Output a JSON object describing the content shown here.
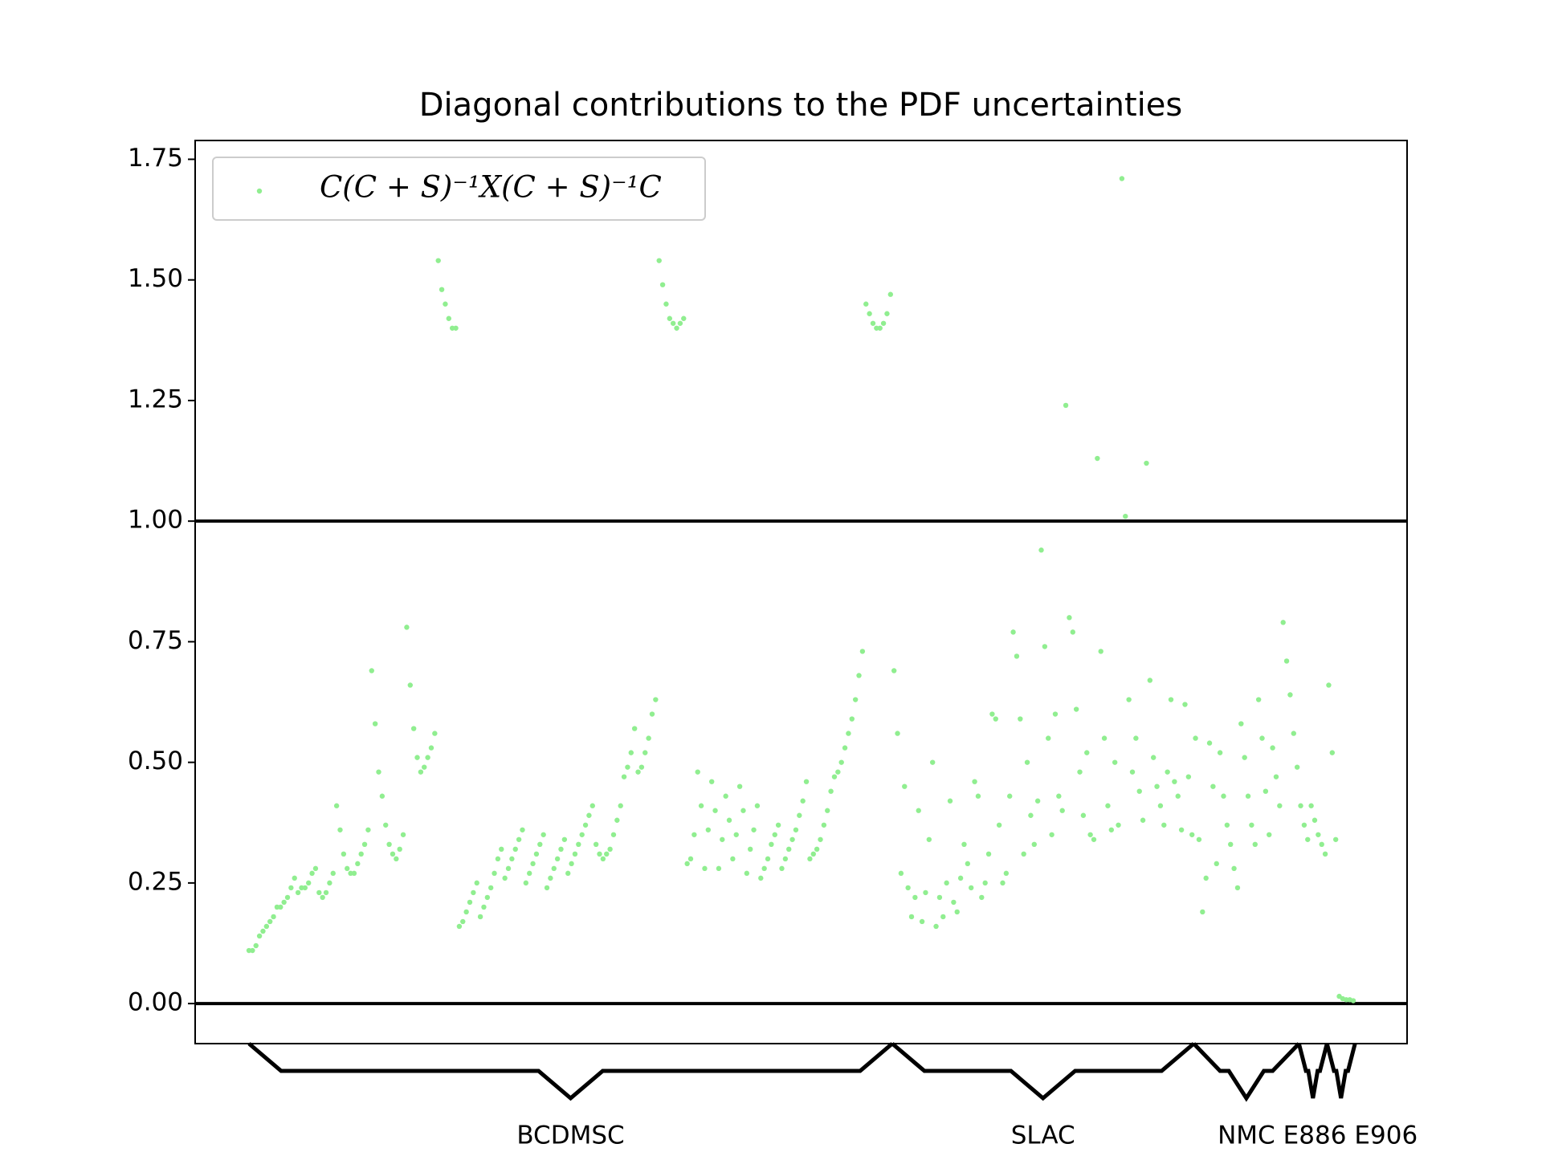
{
  "chart_data": {
    "type": "scatter",
    "title": "Diagonal contributions to the PDF uncertainties",
    "series": [
      {
        "name": "C(C + S)⁻¹X(C + S)⁻¹C",
        "color": "#90ee90",
        "values": [
          0.11,
          0.11,
          0.12,
          0.14,
          0.15,
          0.16,
          0.17,
          0.18,
          0.2,
          0.2,
          0.21,
          0.22,
          0.24,
          0.26,
          0.23,
          0.24,
          0.24,
          0.25,
          0.27,
          0.28,
          0.23,
          0.22,
          0.23,
          0.25,
          0.27,
          0.41,
          0.36,
          0.31,
          0.28,
          0.27,
          0.27,
          0.29,
          0.31,
          0.33,
          0.36,
          0.69,
          0.58,
          0.48,
          0.43,
          0.37,
          0.33,
          0.31,
          0.3,
          0.32,
          0.35,
          0.78,
          0.66,
          0.57,
          0.51,
          0.48,
          0.49,
          0.51,
          0.53,
          0.56,
          1.54,
          1.48,
          1.45,
          1.42,
          1.4,
          1.4,
          0.16,
          0.17,
          0.19,
          0.21,
          0.23,
          0.25,
          0.18,
          0.2,
          0.22,
          0.24,
          0.27,
          0.3,
          0.32,
          0.26,
          0.28,
          0.3,
          0.32,
          0.34,
          0.36,
          0.25,
          0.27,
          0.29,
          0.31,
          0.33,
          0.35,
          0.24,
          0.26,
          0.28,
          0.3,
          0.32,
          0.34,
          0.27,
          0.29,
          0.31,
          0.33,
          0.35,
          0.37,
          0.39,
          0.41,
          0.33,
          0.31,
          0.3,
          0.31,
          0.32,
          0.35,
          0.38,
          0.41,
          0.47,
          0.49,
          0.52,
          0.57,
          0.48,
          0.49,
          0.52,
          0.55,
          0.6,
          0.63,
          1.54,
          1.49,
          1.45,
          1.42,
          1.41,
          1.4,
          1.41,
          1.42,
          0.29,
          0.3,
          0.35,
          0.48,
          0.41,
          0.28,
          0.36,
          0.46,
          0.4,
          0.28,
          0.34,
          0.43,
          0.38,
          0.3,
          0.35,
          0.45,
          0.4,
          0.27,
          0.32,
          0.36,
          0.41,
          0.26,
          0.28,
          0.3,
          0.33,
          0.35,
          0.37,
          0.28,
          0.3,
          0.32,
          0.34,
          0.36,
          0.39,
          0.42,
          0.46,
          0.3,
          0.31,
          0.32,
          0.34,
          0.37,
          0.4,
          0.44,
          0.47,
          0.48,
          0.5,
          0.53,
          0.56,
          0.59,
          0.63,
          0.68,
          0.73,
          1.45,
          1.43,
          1.41,
          1.4,
          1.4,
          1.41,
          1.43,
          1.47,
          0.69,
          0.56,
          0.27,
          0.45,
          0.24,
          0.18,
          0.22,
          0.4,
          0.17,
          0.23,
          0.34,
          0.5,
          0.16,
          0.22,
          0.18,
          0.25,
          0.42,
          0.21,
          0.19,
          0.26,
          0.33,
          0.29,
          0.24,
          0.46,
          0.43,
          0.22,
          0.25,
          0.31,
          0.6,
          0.59,
          0.37,
          0.25,
          0.27,
          0.43,
          0.77,
          0.72,
          0.59,
          0.31,
          0.5,
          0.39,
          0.33,
          0.42,
          0.94,
          0.74,
          0.55,
          0.35,
          0.6,
          0.43,
          0.4,
          1.24,
          0.8,
          0.77,
          0.61,
          0.48,
          0.39,
          0.52,
          0.35,
          0.34,
          1.13,
          0.73,
          0.55,
          0.41,
          0.36,
          0.5,
          0.37,
          1.71,
          1.01,
          0.63,
          0.48,
          0.55,
          0.44,
          0.38,
          1.12,
          0.67,
          0.51,
          0.45,
          0.41,
          0.37,
          0.48,
          0.63,
          0.46,
          0.43,
          0.36,
          0.62,
          0.47,
          0.35,
          0.55,
          0.34,
          0.19,
          0.26,
          0.54,
          0.45,
          0.29,
          0.52,
          0.43,
          0.37,
          0.33,
          0.28,
          0.24,
          0.58,
          0.51,
          0.43,
          0.37,
          0.33,
          0.63,
          0.55,
          0.44,
          0.35,
          0.53,
          0.47,
          0.41,
          0.79,
          0.71,
          0.64,
          0.56,
          0.49,
          0.41,
          0.37,
          0.34,
          0.41,
          0.38,
          0.35,
          0.33,
          0.31,
          0.66,
          0.52,
          0.34,
          0.015,
          0.01,
          0.008,
          0.008,
          0.006
        ]
      }
    ],
    "ylim": [
      -0.083,
      1.789
    ],
    "yticks": [
      {
        "value": 0,
        "label": "0.00"
      },
      {
        "value": 0.25,
        "label": "0.25"
      },
      {
        "value": 0.5,
        "label": "0.50"
      },
      {
        "value": 0.75,
        "label": "0.75"
      },
      {
        "value": 1,
        "label": "1.00"
      },
      {
        "value": 1.25,
        "label": "1.25"
      },
      {
        "value": 1.5,
        "label": "1.50"
      },
      {
        "value": 1.75,
        "label": "1.75"
      }
    ],
    "hlines": [
      0,
      1
    ],
    "legend": "upper left",
    "groups": [
      {
        "label": "BCDMSC",
        "start": 0,
        "end": 183
      },
      {
        "label": "SLAC",
        "start": 184,
        "end": 269
      },
      {
        "label": "NMC",
        "start": 270,
        "end": 299
      },
      {
        "label": "E886",
        "start": 300,
        "end": 307
      },
      {
        "label": "E906",
        "start": 308,
        "end": 315
      }
    ]
  }
}
